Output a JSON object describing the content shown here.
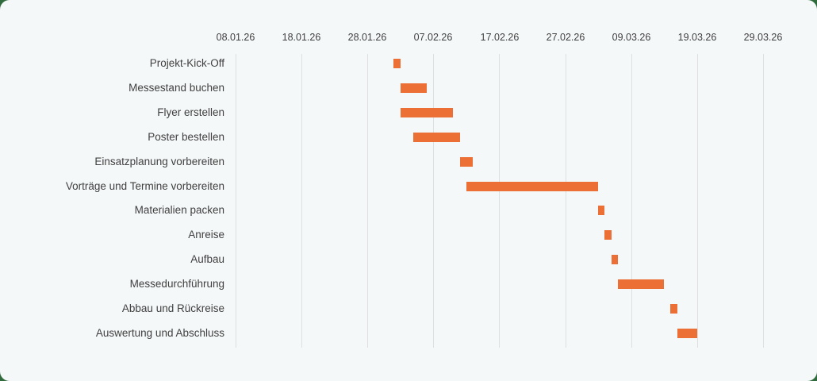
{
  "chart_data": {
    "type": "gantt",
    "title": "",
    "xlabel": "",
    "ylabel": "",
    "x_ticks": [
      "08.01.26",
      "18.01.26",
      "28.01.26",
      "07.02.26",
      "17.02.26",
      "27.02.26",
      "09.03.26",
      "19.03.26",
      "29.03.26"
    ],
    "x_range_days_from_08_01_26": [
      0,
      80
    ],
    "grid": "vertical",
    "bar_color": "#ec7035",
    "tasks": [
      {
        "name": "Projekt-Kick-Off",
        "start": "01.02.26",
        "start_offset": 24,
        "duration_days": 1
      },
      {
        "name": "Messestand buchen",
        "start": "02.02.26",
        "start_offset": 25,
        "duration_days": 4
      },
      {
        "name": "Flyer erstellen",
        "start": "02.02.26",
        "start_offset": 25,
        "duration_days": 8
      },
      {
        "name": "Poster bestellen",
        "start": "04.02.26",
        "start_offset": 27,
        "duration_days": 7
      },
      {
        "name": "Einsatzplanung vorbereiten",
        "start": "11.02.26",
        "start_offset": 34,
        "duration_days": 2
      },
      {
        "name": "Vorträge und Termine vorbereiten",
        "start": "12.02.26",
        "start_offset": 35,
        "duration_days": 20
      },
      {
        "name": "Materialien packen",
        "start": "04.03.26",
        "start_offset": 55,
        "duration_days": 1
      },
      {
        "name": "Anreise",
        "start": "05.03.26",
        "start_offset": 56,
        "duration_days": 1
      },
      {
        "name": "Aufbau",
        "start": "06.03.26",
        "start_offset": 57,
        "duration_days": 1
      },
      {
        "name": "Messedurchführung",
        "start": "07.03.26",
        "start_offset": 58,
        "duration_days": 7
      },
      {
        "name": "Abbau und Rückreise",
        "start": "15.03.26",
        "start_offset": 66,
        "duration_days": 1
      },
      {
        "name": "Auswertung und Abschluss",
        "start": "16.03.26",
        "start_offset": 67,
        "duration_days": 3
      }
    ]
  }
}
